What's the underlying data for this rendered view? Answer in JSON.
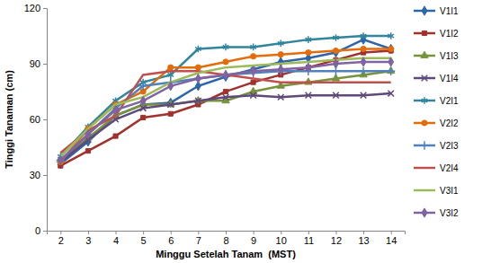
{
  "chart_data": {
    "type": "line",
    "x_label": "Minggu Setelah Tanam  (MST)",
    "y_label": "Tinggi Tanaman (cm)",
    "categories": [
      "2",
      "3",
      "4",
      "5",
      "6",
      "7",
      "8",
      "9",
      "10",
      "11",
      "12",
      "13",
      "14"
    ],
    "ylim": [
      0,
      120
    ],
    "yticks": [
      0,
      30,
      60,
      90,
      120
    ],
    "grid": false,
    "legend": "right",
    "series": [
      {
        "name": "V1I1",
        "color": "#2E65A8",
        "marker": "diamond",
        "line_style": "solid",
        "values": [
          36,
          48,
          62,
          68,
          69,
          78,
          83,
          87,
          91,
          93,
          96,
          103,
          98
        ]
      },
      {
        "name": "V1I2",
        "color": "#A0322E",
        "marker": "square",
        "line_style": "solid",
        "values": [
          35,
          43,
          51,
          61,
          63,
          68,
          75,
          80,
          84,
          88,
          92,
          96,
          97
        ]
      },
      {
        "name": "V1I3",
        "color": "#77933C",
        "marker": "triangle",
        "line_style": "solid",
        "values": [
          38,
          50,
          62,
          68,
          68,
          70,
          70,
          75,
          78,
          80,
          82,
          84,
          86
        ]
      },
      {
        "name": "V1I4",
        "color": "#5F497A",
        "marker": "x",
        "line_style": "solid",
        "values": [
          37,
          49,
          60,
          66,
          68,
          70,
          72,
          73,
          72,
          73,
          73,
          73,
          74
        ]
      },
      {
        "name": "V2I1",
        "color": "#31859C",
        "marker": "asterisk",
        "line_style": "solid",
        "values": [
          40,
          56,
          70,
          80,
          84,
          98,
          99,
          99,
          101,
          103,
          104,
          105,
          105
        ]
      },
      {
        "name": "V2I2",
        "color": "#E46C0A",
        "marker": "circle",
        "line_style": "solid",
        "values": [
          37,
          55,
          68,
          75,
          88,
          88,
          91,
          94,
          95,
          96,
          97,
          98,
          98
        ]
      },
      {
        "name": "V2I3",
        "color": "#4F81BD",
        "marker": "plus",
        "line_style": "solid",
        "values": [
          38,
          52,
          66,
          78,
          80,
          82,
          84,
          85,
          86,
          86,
          86,
          86,
          86
        ]
      },
      {
        "name": "V2I4",
        "color": "#C0504D",
        "marker": "none",
        "line_style": "solid",
        "values": [
          42,
          54,
          62,
          84,
          86,
          86,
          84,
          82,
          80,
          80,
          80,
          80,
          80
        ]
      },
      {
        "name": "V3I1",
        "color": "#9BBB59",
        "marker": "none",
        "line_style": "solid",
        "values": [
          40,
          55,
          68,
          72,
          80,
          85,
          88,
          89,
          90,
          91,
          92,
          93,
          93
        ]
      },
      {
        "name": "V3I2",
        "color": "#8064A2",
        "marker": "diamond",
        "line_style": "solid",
        "values": [
          38,
          52,
          65,
          70,
          78,
          82,
          84,
          86,
          87,
          88,
          90,
          91,
          91
        ]
      }
    ]
  }
}
